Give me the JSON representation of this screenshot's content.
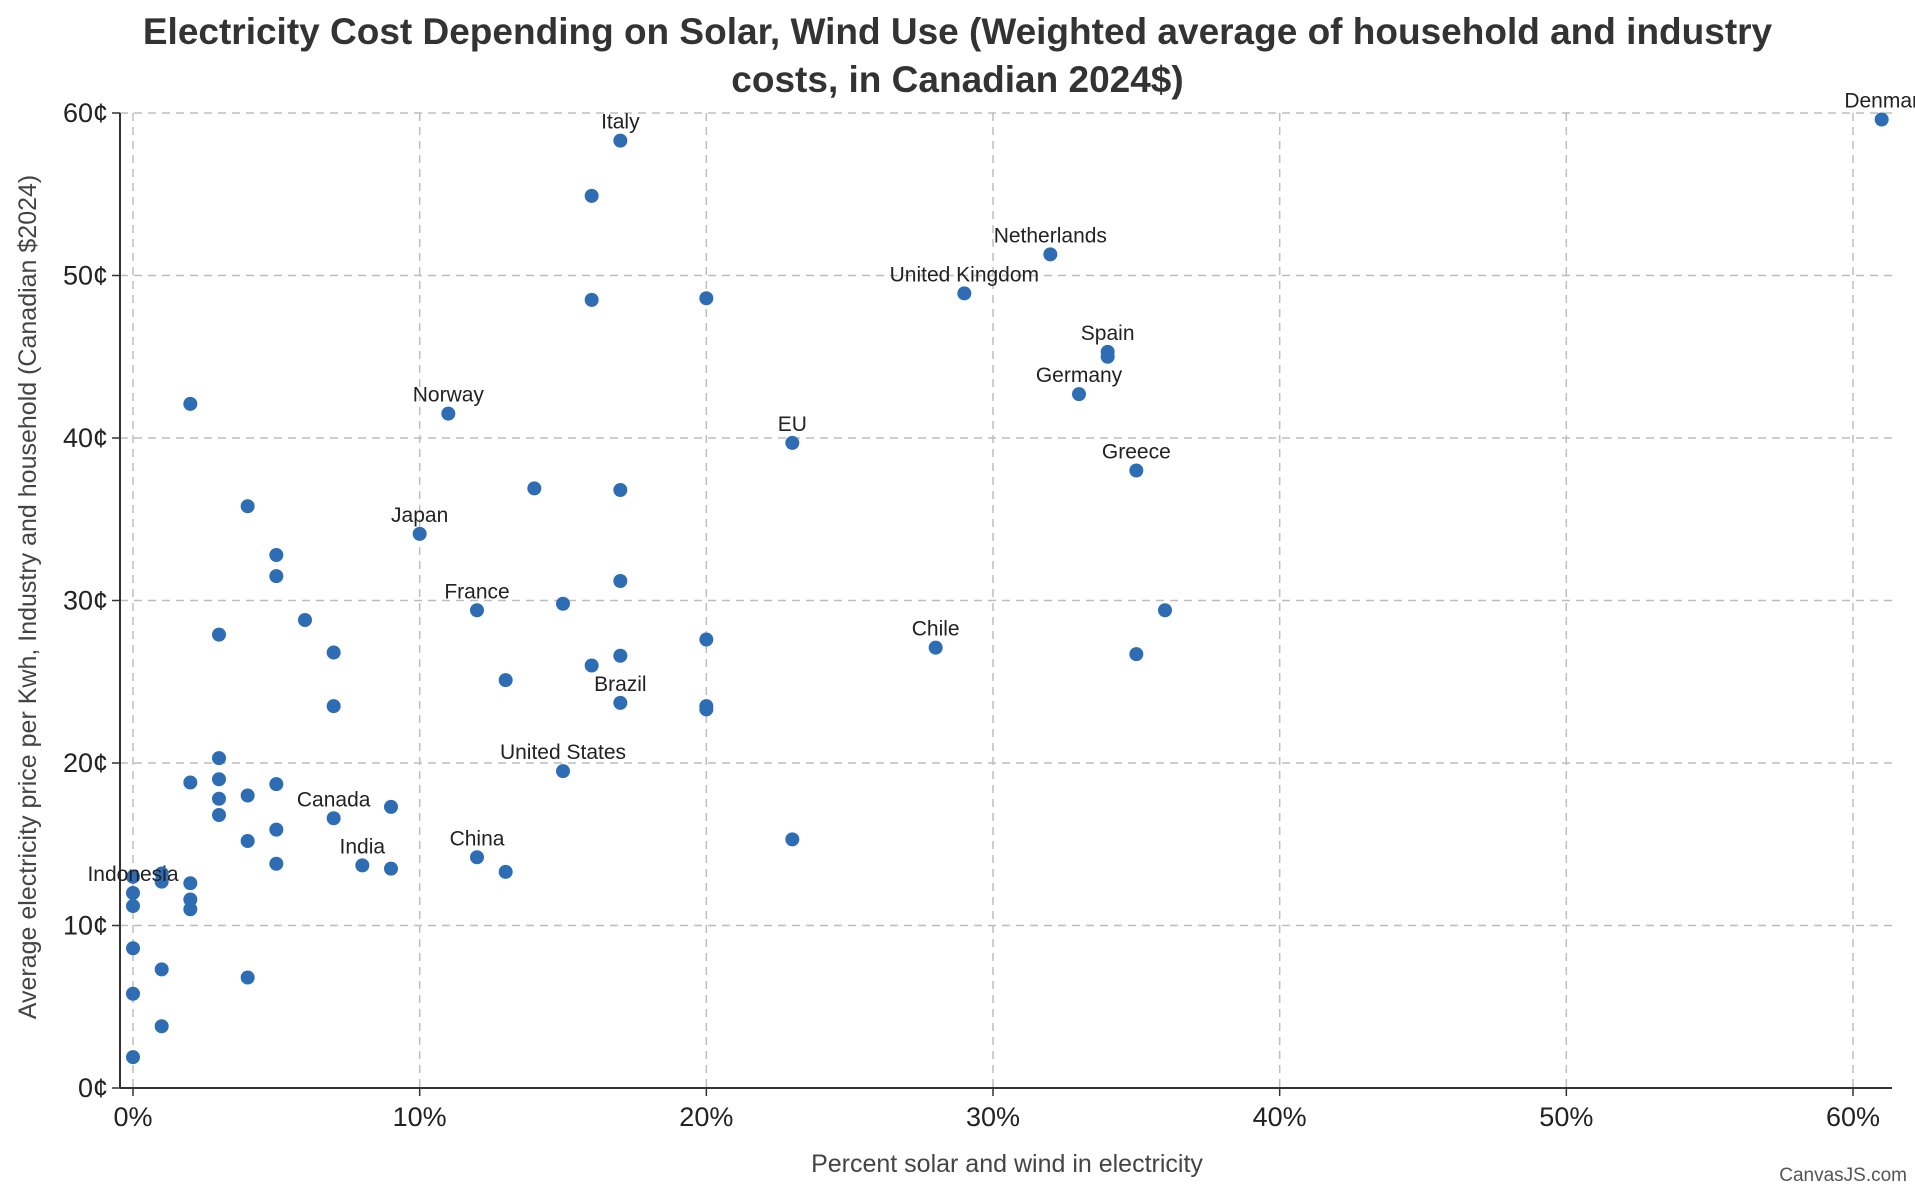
{
  "chart_data": {
    "type": "scatter",
    "title": [
      "Electricity Cost Depending on Solar, Wind Use (Weighted average of household and industry",
      "costs, in Canadian 2024$)"
    ],
    "xlabel": "Percent solar and wind in electricity",
    "ylabel": "Average electricity price per Kwh, Industry and household (Canadian $2024)",
    "xlim": [
      0,
      61.5
    ],
    "ylim": [
      0,
      60
    ],
    "x_ticks": [
      0,
      10,
      20,
      30,
      40,
      50,
      60
    ],
    "x_tick_labels": [
      "0%",
      "10%",
      "20%",
      "30%",
      "40%",
      "50%",
      "60%"
    ],
    "y_ticks": [
      0,
      10,
      20,
      30,
      40,
      50,
      60
    ],
    "y_tick_labels": [
      "0¢",
      "10¢",
      "20¢",
      "30¢",
      "40¢",
      "50¢",
      "60¢"
    ],
    "grid": true,
    "marker_color": "#2E6DB4",
    "points": [
      {
        "x": 61,
        "y": 59.6,
        "label": "Denmar"
      },
      {
        "x": 17,
        "y": 58.3,
        "label": "Italy"
      },
      {
        "x": 32,
        "y": 51.3,
        "label": "Netherlands"
      },
      {
        "x": 29,
        "y": 48.9,
        "label": "United Kingdom"
      },
      {
        "x": 34,
        "y": 45.3,
        "label": "Spain"
      },
      {
        "x": 33,
        "y": 42.7,
        "label": "Germany"
      },
      {
        "x": 11,
        "y": 41.5,
        "label": "Norway"
      },
      {
        "x": 23,
        "y": 39.7,
        "label": "EU"
      },
      {
        "x": 35,
        "y": 38.0,
        "label": "Greece"
      },
      {
        "x": 10,
        "y": 34.1,
        "label": "Japan"
      },
      {
        "x": 12,
        "y": 29.4,
        "label": "France"
      },
      {
        "x": 28,
        "y": 27.1,
        "label": "Chile"
      },
      {
        "x": 17,
        "y": 23.7,
        "label": "Brazil"
      },
      {
        "x": 15,
        "y": 19.5,
        "label": "United States"
      },
      {
        "x": 7,
        "y": 16.6,
        "label": "Canada"
      },
      {
        "x": 8,
        "y": 13.7,
        "label": "India"
      },
      {
        "x": 12,
        "y": 14.2,
        "label": "China"
      },
      {
        "x": 0,
        "y": 12.0,
        "label": "Indonesia"
      },
      {
        "x": 16,
        "y": 54.9
      },
      {
        "x": 16,
        "y": 48.5
      },
      {
        "x": 20,
        "y": 48.6
      },
      {
        "x": 34,
        "y": 45.0
      },
      {
        "x": 2,
        "y": 42.1
      },
      {
        "x": 14,
        "y": 36.9
      },
      {
        "x": 17,
        "y": 36.8
      },
      {
        "x": 4,
        "y": 35.8
      },
      {
        "x": 5,
        "y": 32.8
      },
      {
        "x": 5,
        "y": 31.5
      },
      {
        "x": 17,
        "y": 31.2
      },
      {
        "x": 15,
        "y": 29.8
      },
      {
        "x": 36,
        "y": 29.4
      },
      {
        "x": 6,
        "y": 28.8
      },
      {
        "x": 3,
        "y": 27.9
      },
      {
        "x": 20,
        "y": 27.6
      },
      {
        "x": 7,
        "y": 26.8
      },
      {
        "x": 35,
        "y": 26.7
      },
      {
        "x": 17,
        "y": 26.6
      },
      {
        "x": 16,
        "y": 26.0
      },
      {
        "x": 13,
        "y": 25.1
      },
      {
        "x": 7,
        "y": 23.5
      },
      {
        "x": 20,
        "y": 23.5
      },
      {
        "x": 20,
        "y": 23.3
      },
      {
        "x": 3,
        "y": 20.3
      },
      {
        "x": 3,
        "y": 19.0
      },
      {
        "x": 2,
        "y": 18.8
      },
      {
        "x": 5,
        "y": 18.7
      },
      {
        "x": 4,
        "y": 18.0
      },
      {
        "x": 3,
        "y": 17.8
      },
      {
        "x": 9,
        "y": 17.3
      },
      {
        "x": 3,
        "y": 16.8
      },
      {
        "x": 5,
        "y": 15.9
      },
      {
        "x": 23,
        "y": 15.3
      },
      {
        "x": 4,
        "y": 15.2
      },
      {
        "x": 5,
        "y": 13.8
      },
      {
        "x": 9,
        "y": 13.5
      },
      {
        "x": 13,
        "y": 13.3
      },
      {
        "x": 0,
        "y": 13.0
      },
      {
        "x": 1,
        "y": 13.2
      },
      {
        "x": 1,
        "y": 12.7
      },
      {
        "x": 2,
        "y": 12.6
      },
      {
        "x": 2,
        "y": 11.6
      },
      {
        "x": 0,
        "y": 11.2
      },
      {
        "x": 2,
        "y": 11.0
      },
      {
        "x": 0,
        "y": 8.6
      },
      {
        "x": 1,
        "y": 7.3
      },
      {
        "x": 4,
        "y": 6.8
      },
      {
        "x": 0,
        "y": 5.8
      },
      {
        "x": 1,
        "y": 3.8
      },
      {
        "x": 0,
        "y": 1.9
      }
    ]
  },
  "credit": "CanvasJS.com"
}
